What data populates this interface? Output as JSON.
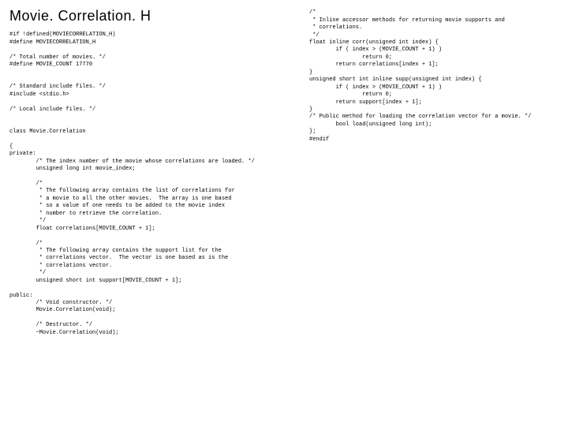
{
  "title": "Movie. Correlation. H",
  "left_code": "#if !defined(MOVIECORRELATION_H)\n#define MOVIECORRELATION_H\n\n/* Total number of movies. */\n#define MOVIE_COUNT 17770\n\n\n/* Standard include files. */\n#include <stdio.h>\n\n/* Local include files. */\n\n\nclass Movie.Correlation\n\n{\nprivate:\n        /* The index number of the movie whose correlations are loaded. */\n        unsigned long int movie_index;\n\n        /*\n         * The following array contains the list of correlations for\n         * a movie to all the other movies.  The array is one based\n         * so a value of one needs to be added to the movie index\n         * number to retrieve the correlation.\n         */\n        float correlations[MOVIE_COUNT + 1];\n\n        /*\n         * The following array contains the support list for the\n         * correlations vector.  The vector is one based as is the\n         * correlations vector.\n         */\n        unsigned short int support[MOVIE_COUNT + 1];\n\npublic:\n        /* Void constructor. */\n        Movie.Correlation(void);\n\n        /* Destructor. */\n        ~Movie.Correlation(void);",
  "right_code": "/*\n * Inline accessor methods for returning movie supports and\n * correlations.\n */\nfloat inline corr(unsigned int index) {\n        if ( index > (MOVIE_COUNT + 1) )\n                return 0;\n        return correlations[index + 1];\n}\nunsigned short int inline supp(unsigned int index) {\n        if ( index > (MOVIE_COUNT + 1) )\n                return 0;\n        return support[index + 1];\n}\n/* Public method for loading the correlation vector for a movie. */\n        bool load(unsigned long int);\n};\n#endif"
}
